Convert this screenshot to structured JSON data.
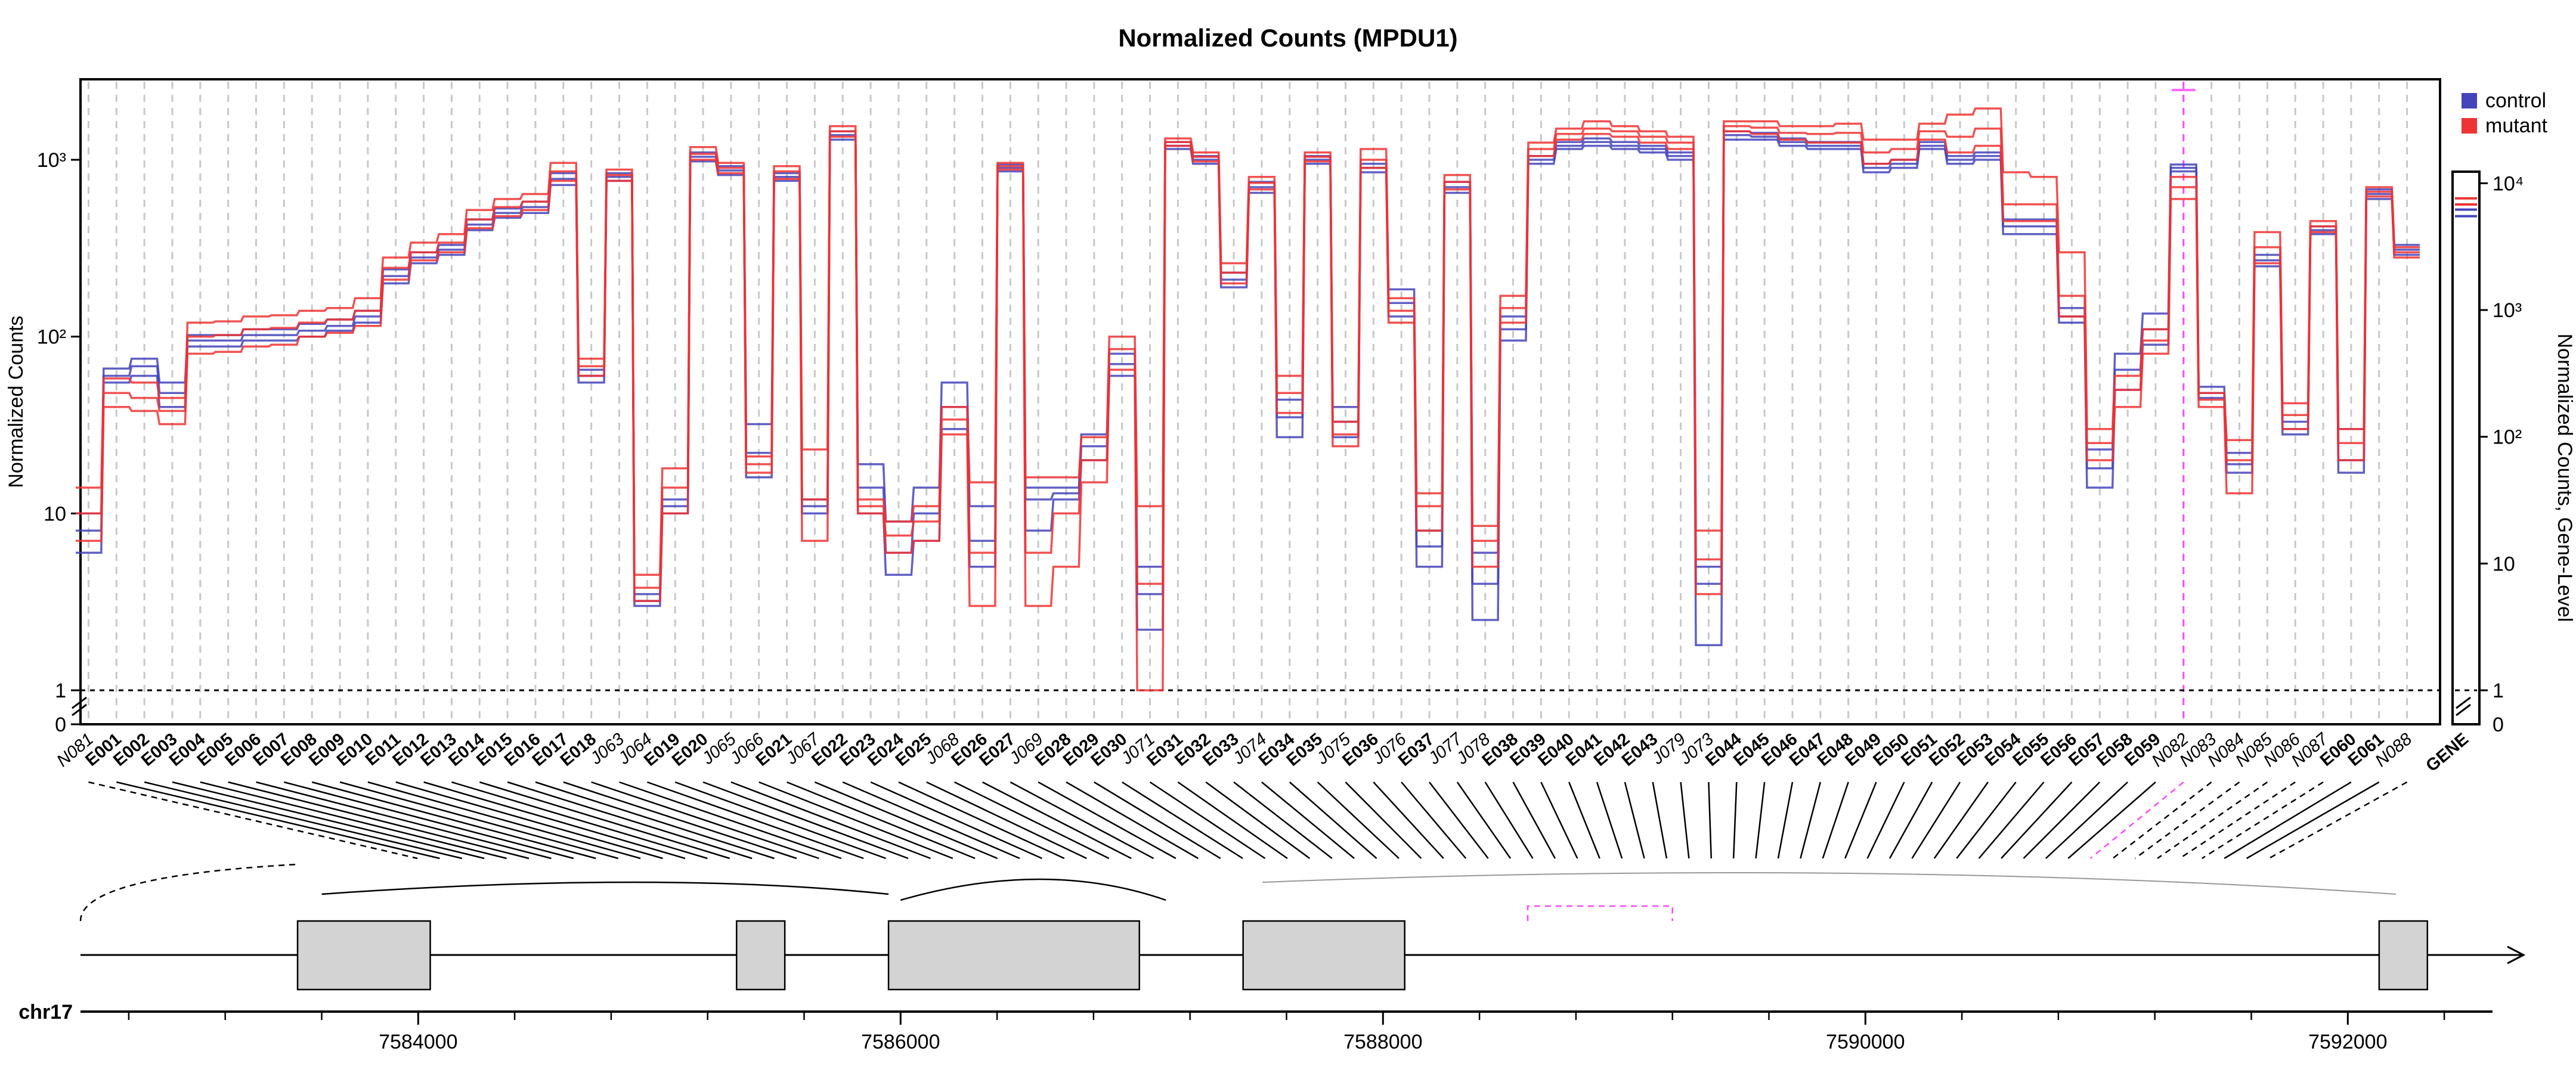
{
  "chart_data": {
    "type": "line",
    "title": "Normalized Counts (MPDU1)",
    "ylabel": "Normalized Counts",
    "ylabel_right": "Normalized Counts, Gene-Level",
    "yscale": "log",
    "ylim": [
      1,
      2500
    ],
    "yticks": [
      "1",
      "10",
      "10²",
      "10³"
    ],
    "yticks_right": [
      "1",
      "10",
      "10²",
      "10³",
      "10⁴"
    ],
    "zero_label": "0",
    "ylim_right": [
      1,
      15000
    ],
    "chromosome": "chr17",
    "genome_ticks": [
      "7584000",
      "7586000",
      "7588000",
      "7590000",
      "7592000"
    ],
    "genome_tick_values": [
      7584000,
      7586000,
      7588000,
      7590000,
      7592000
    ],
    "genome_range": [
      7582600,
      7592600
    ],
    "legend": [
      {
        "name": "control",
        "color": "#4444bb"
      },
      {
        "name": "mutant",
        "color": "#ee3333"
      }
    ],
    "features": [
      {
        "id": "N081",
        "kind": "novel",
        "ctrl": [
          6,
          8,
          10
        ],
        "mut": [
          7,
          10,
          14
        ]
      },
      {
        "id": "E001",
        "kind": "exon",
        "ctrl": [
          55,
          60,
          66
        ],
        "mut": [
          40,
          48,
          58
        ]
      },
      {
        "id": "E002",
        "kind": "exon",
        "ctrl": [
          60,
          68,
          75
        ],
        "mut": [
          38,
          45,
          55
        ]
      },
      {
        "id": "E003",
        "kind": "exon",
        "ctrl": [
          40,
          48,
          55
        ],
        "mut": [
          32,
          38,
          45
        ]
      },
      {
        "id": "E004",
        "kind": "exon",
        "ctrl": [
          88,
          95,
          102
        ],
        "mut": [
          80,
          100,
          120
        ]
      },
      {
        "id": "E005",
        "kind": "exon",
        "ctrl": [
          88,
          95,
          102
        ],
        "mut": [
          82,
          102,
          122
        ]
      },
      {
        "id": "E006",
        "kind": "exon",
        "ctrl": [
          95,
          102,
          110
        ],
        "mut": [
          88,
          110,
          130
        ]
      },
      {
        "id": "E007",
        "kind": "exon",
        "ctrl": [
          95,
          102,
          110
        ],
        "mut": [
          90,
          112,
          132
        ]
      },
      {
        "id": "E008",
        "kind": "exon",
        "ctrl": [
          100,
          108,
          118
        ],
        "mut": [
          100,
          120,
          140
        ]
      },
      {
        "id": "E009",
        "kind": "exon",
        "ctrl": [
          108,
          115,
          125
        ],
        "mut": [
          105,
          125,
          145
        ]
      },
      {
        "id": "E010",
        "kind": "exon",
        "ctrl": [
          120,
          130,
          140
        ],
        "mut": [
          115,
          140,
          165
        ]
      },
      {
        "id": "E011",
        "kind": "exon",
        "ctrl": [
          200,
          220,
          240
        ],
        "mut": [
          210,
          245,
          280
        ]
      },
      {
        "id": "E012",
        "kind": "exon",
        "ctrl": [
          260,
          280,
          300
        ],
        "mut": [
          270,
          300,
          340
        ]
      },
      {
        "id": "E013",
        "kind": "exon",
        "ctrl": [
          290,
          310,
          330
        ],
        "mut": [
          300,
          340,
          380
        ]
      },
      {
        "id": "E014",
        "kind": "exon",
        "ctrl": [
          400,
          430,
          460
        ],
        "mut": [
          410,
          460,
          520
        ]
      },
      {
        "id": "E015",
        "kind": "exon",
        "ctrl": [
          470,
          500,
          530
        ],
        "mut": [
          480,
          540,
          600
        ]
      },
      {
        "id": "E016",
        "kind": "exon",
        "ctrl": [
          500,
          540,
          580
        ],
        "mut": [
          520,
          580,
          640
        ]
      },
      {
        "id": "E017",
        "kind": "exon",
        "ctrl": [
          720,
          780,
          840
        ],
        "mut": [
          760,
          860,
          960
        ]
      },
      {
        "id": "E018",
        "kind": "exon",
        "ctrl": [
          55,
          60,
          65
        ],
        "mut": [
          60,
          68,
          75
        ]
      },
      {
        "id": "J063",
        "kind": "junction",
        "ctrl": [
          760,
          800,
          840
        ],
        "mut": [
          760,
          820,
          880
        ]
      },
      {
        "id": "J064",
        "kind": "junction",
        "ctrl": [
          3,
          3.2,
          3.5
        ],
        "mut": [
          3.2,
          3.8,
          4.5
        ]
      },
      {
        "id": "E019",
        "kind": "exon",
        "ctrl": [
          10,
          11,
          12
        ],
        "mut": [
          10,
          14,
          18
        ]
      },
      {
        "id": "E020",
        "kind": "exon",
        "ctrl": [
          980,
          1040,
          1100
        ],
        "mut": [
          1000,
          1080,
          1180
        ]
      },
      {
        "id": "J065",
        "kind": "junction",
        "ctrl": [
          820,
          870,
          920
        ],
        "mut": [
          840,
          900,
          960
        ]
      },
      {
        "id": "J066",
        "kind": "junction",
        "ctrl": [
          16,
          22,
          32
        ],
        "mut": [
          17,
          19,
          21
        ]
      },
      {
        "id": "E021",
        "kind": "exon",
        "ctrl": [
          760,
          800,
          840
        ],
        "mut": [
          780,
          860,
          920
        ]
      },
      {
        "id": "J067",
        "kind": "junction",
        "ctrl": [
          10,
          11,
          12
        ],
        "mut": [
          7,
          12,
          23
        ]
      },
      {
        "id": "E022",
        "kind": "exon",
        "ctrl": [
          1300,
          1380,
          1450
        ],
        "mut": [
          1350,
          1450,
          1550
        ]
      },
      {
        "id": "E023",
        "kind": "exon",
        "ctrl": [
          10,
          14,
          19
        ],
        "mut": [
          10,
          11,
          12
        ]
      },
      {
        "id": "E024",
        "kind": "exon",
        "ctrl": [
          4.5,
          6,
          9
        ],
        "mut": [
          6,
          7.5,
          9
        ]
      },
      {
        "id": "E025",
        "kind": "exon",
        "ctrl": [
          7,
          10,
          14
        ],
        "mut": [
          7,
          9,
          11
        ]
      },
      {
        "id": "J068",
        "kind": "junction",
        "ctrl": [
          30,
          40,
          55
        ],
        "mut": [
          28,
          34,
          40
        ]
      },
      {
        "id": "E026",
        "kind": "exon",
        "ctrl": [
          5,
          7,
          11
        ],
        "mut": [
          3,
          6,
          15
        ]
      },
      {
        "id": "E027",
        "kind": "exon",
        "ctrl": [
          860,
          900,
          940
        ],
        "mut": [
          880,
          920,
          960
        ]
      },
      {
        "id": "J069",
        "kind": "junction",
        "ctrl": [
          8,
          12,
          14
        ],
        "mut": [
          3,
          6,
          16
        ]
      },
      {
        "id": "E028",
        "kind": "exon",
        "ctrl": [
          12,
          13,
          14
        ],
        "mut": [
          5,
          10,
          16
        ]
      },
      {
        "id": "E029",
        "kind": "exon",
        "ctrl": [
          20,
          24,
          28
        ],
        "mut": [
          15,
          20,
          27
        ]
      },
      {
        "id": "E030",
        "kind": "exon",
        "ctrl": [
          60,
          70,
          80
        ],
        "mut": [
          65,
          85,
          100
        ]
      },
      {
        "id": "J071",
        "kind": "junction",
        "ctrl": [
          2.2,
          3.5,
          5
        ],
        "mut": [
          1,
          4,
          11
        ]
      },
      {
        "id": "E031",
        "kind": "exon",
        "ctrl": [
          1150,
          1200,
          1260
        ],
        "mut": [
          1200,
          1260,
          1320
        ]
      },
      {
        "id": "E032",
        "kind": "exon",
        "ctrl": [
          950,
          1000,
          1050
        ],
        "mut": [
          980,
          1040,
          1100
        ]
      },
      {
        "id": "E033",
        "kind": "exon",
        "ctrl": [
          190,
          210,
          230
        ],
        "mut": [
          200,
          230,
          260
        ]
      },
      {
        "id": "J074",
        "kind": "junction",
        "ctrl": [
          650,
          700,
          750
        ],
        "mut": [
          680,
          740,
          800
        ]
      },
      {
        "id": "E034",
        "kind": "exon",
        "ctrl": [
          27,
          35,
          44
        ],
        "mut": [
          37,
          48,
          60
        ]
      },
      {
        "id": "E035",
        "kind": "exon",
        "ctrl": [
          950,
          1000,
          1050
        ],
        "mut": [
          980,
          1040,
          1100
        ]
      },
      {
        "id": "J075",
        "kind": "junction",
        "ctrl": [
          27,
          33,
          40
        ],
        "mut": [
          24,
          28,
          33
        ]
      },
      {
        "id": "E036",
        "kind": "exon",
        "ctrl": [
          850,
          900,
          950
        ],
        "mut": [
          900,
          1000,
          1150
        ]
      },
      {
        "id": "J076",
        "kind": "junction",
        "ctrl": [
          130,
          155,
          185
        ],
        "mut": [
          120,
          140,
          165
        ]
      },
      {
        "id": "E037",
        "kind": "exon",
        "ctrl": [
          5,
          6.5,
          8
        ],
        "mut": [
          8,
          11,
          13
        ]
      },
      {
        "id": "J077",
        "kind": "junction",
        "ctrl": [
          650,
          700,
          750
        ],
        "mut": [
          680,
          750,
          820
        ]
      },
      {
        "id": "J078",
        "kind": "junction",
        "ctrl": [
          2.5,
          4,
          6
        ],
        "mut": [
          5,
          7,
          8.5
        ]
      },
      {
        "id": "E038",
        "kind": "exon",
        "ctrl": [
          95,
          110,
          130
        ],
        "mut": [
          120,
          145,
          170
        ]
      },
      {
        "id": "E039",
        "kind": "exon",
        "ctrl": [
          950,
          1000,
          1050
        ],
        "mut": [
          1050,
          1150,
          1250
        ]
      },
      {
        "id": "E040",
        "kind": "exon",
        "ctrl": [
          1150,
          1200,
          1260
        ],
        "mut": [
          1300,
          1400,
          1500
        ]
      },
      {
        "id": "E041",
        "kind": "exon",
        "ctrl": [
          1200,
          1260,
          1320
        ],
        "mut": [
          1400,
          1500,
          1650
        ]
      },
      {
        "id": "E042",
        "kind": "exon",
        "ctrl": [
          1150,
          1200,
          1260
        ],
        "mut": [
          1350,
          1450,
          1550
        ]
      },
      {
        "id": "E043",
        "kind": "exon",
        "ctrl": [
          1100,
          1150,
          1200
        ],
        "mut": [
          1250,
          1350,
          1450
        ]
      },
      {
        "id": "J079",
        "kind": "junction",
        "ctrl": [
          1000,
          1050,
          1100
        ],
        "mut": [
          1150,
          1250,
          1350
        ]
      },
      {
        "id": "J073",
        "kind": "junction",
        "ctrl": [
          1.8,
          4,
          5
        ],
        "mut": [
          3.5,
          5.5,
          8
        ]
      },
      {
        "id": "E044",
        "kind": "exon",
        "ctrl": [
          1300,
          1380,
          1450
        ],
        "mut": [
          1450,
          1550,
          1650
        ]
      },
      {
        "id": "E045",
        "kind": "exon",
        "ctrl": [
          1300,
          1350,
          1420
        ],
        "mut": [
          1400,
          1520,
          1650
        ]
      },
      {
        "id": "E046",
        "kind": "exon",
        "ctrl": [
          1200,
          1260,
          1320
        ],
        "mut": [
          1300,
          1420,
          1550
        ]
      },
      {
        "id": "E047",
        "kind": "exon",
        "ctrl": [
          1150,
          1200,
          1260
        ],
        "mut": [
          1250,
          1400,
          1550
        ]
      },
      {
        "id": "E048",
        "kind": "exon",
        "ctrl": [
          1150,
          1200,
          1260
        ],
        "mut": [
          1250,
          1420,
          1600
        ]
      },
      {
        "id": "E049",
        "kind": "exon",
        "ctrl": [
          850,
          900,
          950
        ],
        "mut": [
          950,
          1100,
          1300
        ]
      },
      {
        "id": "E050",
        "kind": "exon",
        "ctrl": [
          900,
          950,
          1000
        ],
        "mut": [
          1000,
          1150,
          1300
        ]
      },
      {
        "id": "E051",
        "kind": "exon",
        "ctrl": [
          1150,
          1200,
          1260
        ],
        "mut": [
          1300,
          1450,
          1600
        ]
      },
      {
        "id": "E052",
        "kind": "exon",
        "ctrl": [
          950,
          1000,
          1050
        ],
        "mut": [
          1100,
          1350,
          1800
        ]
      },
      {
        "id": "E053",
        "kind": "exon",
        "ctrl": [
          1000,
          1050,
          1100
        ],
        "mut": [
          1200,
          1500,
          1950
        ]
      },
      {
        "id": "E054",
        "kind": "exon",
        "ctrl": [
          380,
          420,
          460
        ],
        "mut": [
          450,
          560,
          850
        ]
      },
      {
        "id": "E055",
        "kind": "exon",
        "ctrl": [
          380,
          420,
          460
        ],
        "mut": [
          450,
          560,
          800
        ]
      },
      {
        "id": "E056",
        "kind": "exon",
        "ctrl": [
          120,
          130,
          145
        ],
        "mut": [
          130,
          170,
          300
        ]
      },
      {
        "id": "E057",
        "kind": "exon",
        "ctrl": [
          14,
          18,
          23
        ],
        "mut": [
          20,
          25,
          30
        ]
      },
      {
        "id": "E058",
        "kind": "exon",
        "ctrl": [
          50,
          65,
          80
        ],
        "mut": [
          40,
          50,
          60
        ]
      },
      {
        "id": "E059",
        "kind": "exon",
        "ctrl": [
          90,
          110,
          135
        ],
        "mut": [
          80,
          95,
          110
        ]
      },
      {
        "id": "N082",
        "kind": "novel",
        "ctrl": [
          860,
          900,
          940
        ],
        "mut": [
          600,
          700,
          800
        ]
      },
      {
        "id": "N083",
        "kind": "novel",
        "ctrl": [
          45,
          48,
          52
        ],
        "mut": [
          40,
          44,
          48
        ]
      },
      {
        "id": "N084",
        "kind": "novel",
        "ctrl": [
          17,
          19,
          22
        ],
        "mut": [
          13,
          20,
          26
        ]
      },
      {
        "id": "N085",
        "kind": "novel",
        "ctrl": [
          250,
          270,
          290
        ],
        "mut": [
          260,
          320,
          390
        ]
      },
      {
        "id": "N086",
        "kind": "novel",
        "ctrl": [
          28,
          30,
          33
        ],
        "mut": [
          30,
          36,
          42
        ]
      },
      {
        "id": "N087",
        "kind": "novel",
        "ctrl": [
          380,
          400,
          420
        ],
        "mut": [
          390,
          420,
          450
        ]
      },
      {
        "id": "E060",
        "kind": "exon",
        "ctrl": [
          17,
          20,
          30
        ],
        "mut": [
          20,
          25,
          30
        ]
      },
      {
        "id": "E061",
        "kind": "exon",
        "ctrl": [
          600,
          640,
          680
        ],
        "mut": [
          620,
          660,
          700
        ]
      },
      {
        "id": "N088",
        "kind": "novel",
        "ctrl": [
          290,
          310,
          330
        ],
        "mut": [
          280,
          300,
          320
        ]
      }
    ],
    "gene_level": {
      "label": "GENE",
      "ctrl": [
        5500,
        6200
      ],
      "mut": [
        6800,
        7600
      ]
    },
    "highlighted_feature": "N082"
  }
}
